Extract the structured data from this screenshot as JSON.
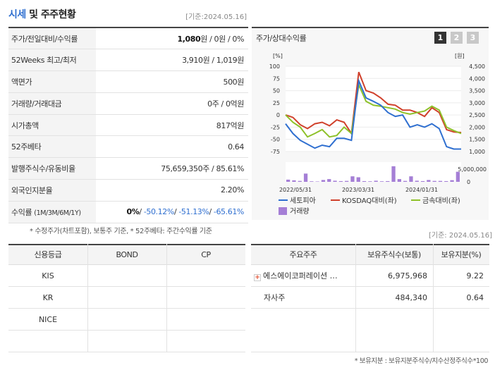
{
  "header": {
    "title_hl": "시세",
    "title_rest": " 및 주주현황",
    "as_of": "[기준:2024.05.16]"
  },
  "price": {
    "rows": [
      {
        "label": "주가/전일대비/수익률",
        "price": "1,080",
        "unit": "원",
        "rest": " / 0원 / 0%"
      },
      {
        "label": "52Weeks 최고/최저",
        "value": "3,910원 / 1,019원"
      },
      {
        "label": "액면가",
        "value": "500원"
      },
      {
        "label": "거래량/거래대금",
        "value": "0주 / 0억원"
      },
      {
        "label": "시가총액",
        "value": "817억원"
      },
      {
        "label": "52주베타",
        "value": "0.64"
      },
      {
        "label": "발행주식수/유동비율",
        "value": "75,659,350주 / 85.61%"
      },
      {
        "label": "외국인지분율",
        "value": "2.20%"
      }
    ],
    "returns": {
      "label": "수익률",
      "periods": "(1M/3M/6M/1Y)",
      "r1": "0%",
      "r2": "-50.12%",
      "r3": "-51.13%",
      "r4": "-65.61%"
    },
    "note": "* 수정주가(차트포함), 보통주 기준, * 52주베타: 주간수익률 기준"
  },
  "chart": {
    "title": "주가/상대수익률",
    "tabs": [
      "1",
      "2",
      "3"
    ],
    "colors": {
      "stock": "#2f6fd0",
      "kosdaq": "#d0402b",
      "sector": "#8ec12a",
      "volume": "#a57fd6"
    }
  },
  "chart_data": {
    "type": "line",
    "x_ticks": [
      "2022/05/31",
      "2023/03/31",
      "2024/01/31"
    ],
    "y_left_label": "[%]",
    "y_left_ticks": [
      "100",
      "75",
      "50",
      "25",
      "0",
      "-25",
      "-50",
      "-75"
    ],
    "y_right_label": "[원]",
    "y_right_ticks": [
      "4,500",
      "4,000",
      "3,500",
      "3,000",
      "2,500",
      "2,000",
      "1,500",
      "1,000"
    ],
    "volume_ticks": [
      "5,000,000",
      "0"
    ],
    "ylim_left": [
      -75,
      100
    ],
    "series": [
      {
        "name": "세토피아",
        "values": [
          -18,
          -38,
          -52,
          -60,
          -68,
          -62,
          -65,
          -48,
          -48,
          -52,
          70,
          35,
          28,
          20,
          5,
          -3,
          0,
          -25,
          -20,
          -25,
          -18,
          -28,
          -65,
          -70,
          -70
        ]
      },
      {
        "name": "KOSDAQ대비(좌)",
        "values": [
          0,
          -5,
          -20,
          -28,
          -18,
          -15,
          -22,
          -10,
          -15,
          -38,
          88,
          50,
          45,
          35,
          22,
          20,
          10,
          10,
          5,
          -3,
          15,
          5,
          -30,
          -35,
          -36
        ]
      },
      {
        "name": "금속대비(좌)",
        "values": [
          0,
          -15,
          -25,
          -45,
          -38,
          -30,
          -45,
          -42,
          -25,
          -38,
          62,
          28,
          20,
          18,
          15,
          12,
          5,
          2,
          5,
          8,
          18,
          10,
          -25,
          -32,
          -38
        ]
      }
    ],
    "volume": {
      "name": "거래량",
      "values": [
        0.12,
        0.08,
        0.05,
        0.45,
        0.03,
        0.02,
        0.1,
        0.15,
        0.06,
        0.04,
        0.05,
        0.3,
        0.25,
        0.04,
        0.03,
        0.06,
        0.03,
        0.04,
        0.85,
        0.15,
        0.05,
        0.3,
        0.06,
        0.04,
        0.1,
        0.05,
        0.05,
        0.04,
        0.09,
        0.55
      ]
    }
  },
  "credit": {
    "headers": [
      "신용등급",
      "BOND",
      "CP"
    ],
    "rows": [
      "KIS",
      "KR",
      "NICE",
      ""
    ]
  },
  "holders": {
    "as_of": "[기준: 2024.05.16]",
    "headers": [
      "주요주주",
      "보유주식수(보통)",
      "보유지분(%)"
    ],
    "rows": [
      {
        "name": "에스에이코퍼레이션 …",
        "shares": "6,975,968",
        "pct": "9.22"
      },
      {
        "name": "자사주",
        "shares": "484,340",
        "pct": "0.64"
      }
    ],
    "note": "* 보유지분 : 보유지분주식수/지수산정주식수*100"
  }
}
